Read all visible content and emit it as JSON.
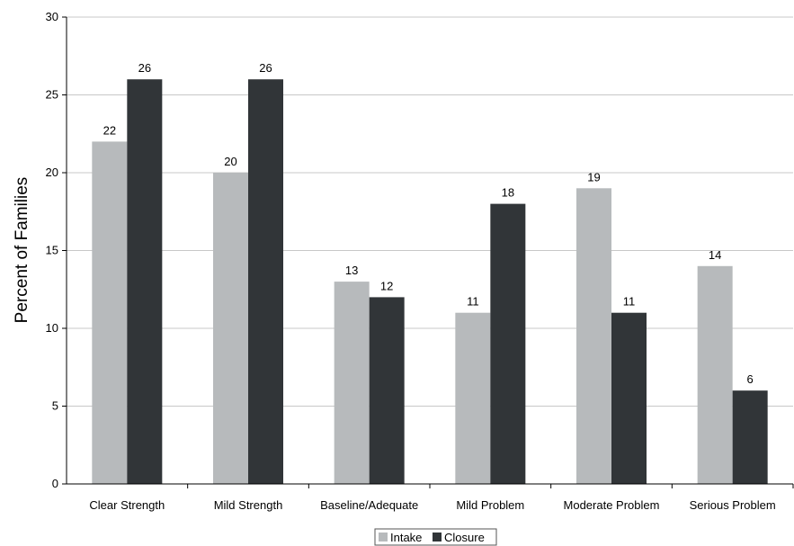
{
  "chart_data": {
    "type": "bar",
    "categories": [
      "Clear Strength",
      "Mild Strength",
      "Baseline/Adequate",
      "Mild Problem",
      "Moderate Problem",
      "Serious Problem"
    ],
    "series": [
      {
        "name": "Intake",
        "values": [
          22,
          20,
          13,
          11,
          19,
          14
        ],
        "color": "#b7babc"
      },
      {
        "name": "Closure",
        "values": [
          26,
          26,
          12,
          18,
          11,
          6
        ],
        "color": "#313538"
      }
    ],
    "title": "",
    "xlabel": "",
    "ylabel": "Percent of Families",
    "ylim": [
      0,
      30
    ],
    "yticks": [
      0,
      5,
      10,
      15,
      20,
      25,
      30
    ],
    "grid": true,
    "legend": "bottom"
  }
}
